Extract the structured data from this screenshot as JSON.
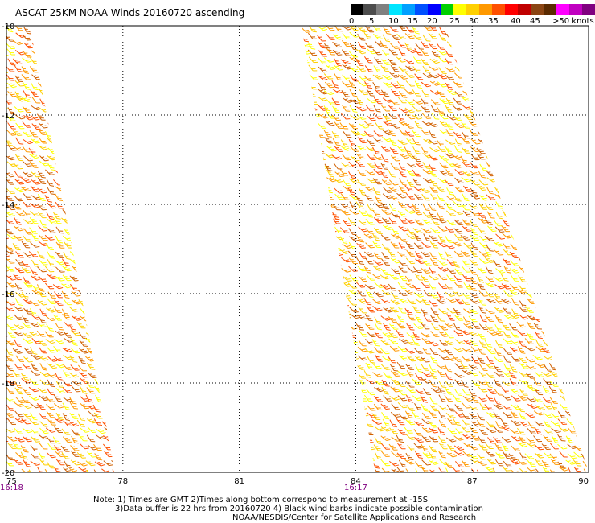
{
  "title": "ASCAT 25KM NOAA Winds 20160720 ascending",
  "legend": {
    "colors": [
      "#000000",
      "#4d4d4d",
      "#808080",
      "#00e5ff",
      "#00a0ff",
      "#0050ff",
      "#0000ff",
      "#00d000",
      "#ffff00",
      "#ffd000",
      "#ff9900",
      "#ff5000",
      "#ff0000",
      "#c00000",
      "#8b4513",
      "#5a2a00",
      "#ff00ff",
      "#c000c0",
      "#800080",
      "#400060"
    ],
    "labels": [
      "0",
      "5",
      "10",
      "15",
      "20",
      "25",
      "30",
      "35",
      "40",
      "45",
      ">50 knots"
    ]
  },
  "axes": {
    "x_ticks": [
      "75",
      "78",
      "81",
      "84",
      "87",
      "90"
    ],
    "y_ticks": [
      "-10",
      "-12",
      "-14",
      "-16",
      "-18",
      "-20"
    ],
    "time_labels": [
      {
        "text": "16:18",
        "lon": 75
      },
      {
        "text": "16:17",
        "lon": 84
      }
    ],
    "time_color": "#800080"
  },
  "map": {
    "lon_range": [
      75,
      90
    ],
    "lat_range": [
      -20,
      -10
    ],
    "grid": true,
    "swaths": [
      {
        "name": "west",
        "corners": [
          [
            75,
            -10
          ],
          [
            75.6,
            -10
          ],
          [
            77.8,
            -20
          ],
          [
            75,
            -20
          ]
        ]
      },
      {
        "name": "east",
        "corners": [
          [
            82.6,
            -10
          ],
          [
            86.3,
            -10
          ],
          [
            90,
            -20
          ],
          [
            84.5,
            -20
          ]
        ]
      }
    ],
    "barb_colors": [
      "#ffff00",
      "#ffd000",
      "#ff9900",
      "#ff5000",
      "#d06000"
    ]
  },
  "notes": [
    "Note: 1) Times are GMT 2)Times along bottom correspond to measurement at -15S",
    "3)Data buffer is 22 hrs from 20160720 4) Black wind barbs indicate possible contamination",
    "NOAA/NESDIS/Center for Satellite Applications and Research"
  ]
}
